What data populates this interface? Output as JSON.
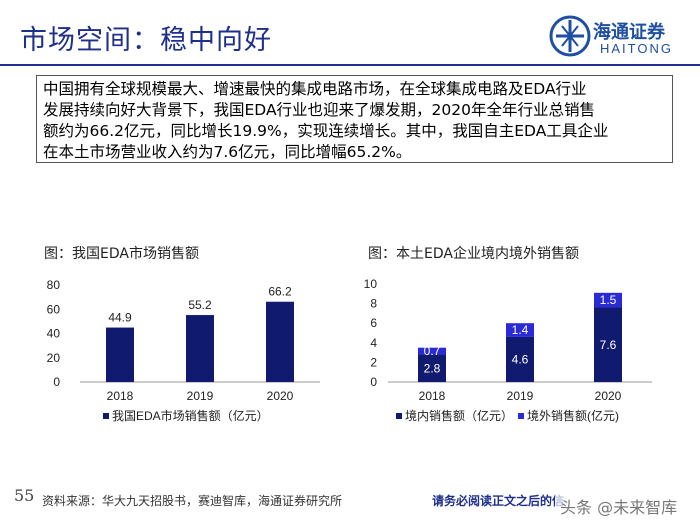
{
  "page": {
    "title": "市场空间：稳中向好",
    "logo_cn": "海通证券",
    "logo_en": "HAITONG",
    "summary_lines": [
      "中国拥有全球规模最大、增速最快的集成电路市场，在全球集成电路及EDA行业",
      "发展持续向好大背景下，我国EDA行业也迎来了爆发期，2020年全年行业总销售",
      "额约为66.2亿元，同比增长19.9%，实现连续增长。其中，我国自主EDA工具企业",
      "在本土市场营业收入约为7.6亿元，同比增幅65.2%。"
    ],
    "page_number": "55",
    "source": "资料来源：华大九天招股书，赛迪智库，海通证券研究所",
    "disclaimer": "请务必阅读正文之后的信",
    "watermark": "头条 @未来智库"
  },
  "colors": {
    "brand": "#1f2f8c",
    "bar_dark": "#101a6e",
    "bar_light": "#2b2bd6"
  },
  "chart_data": [
    {
      "type": "bar",
      "title": "图：我国EDA市场销售额",
      "categories": [
        "2018",
        "2019",
        "2020"
      ],
      "series": [
        {
          "name": "我国EDA市场销售额（亿元）",
          "values": [
            44.9,
            55.2,
            66.2
          ]
        }
      ],
      "data_labels": [
        "44.9",
        "55.2",
        "66.2"
      ],
      "ylim": [
        0,
        80
      ],
      "yticks": [
        0,
        20,
        40,
        60,
        80
      ],
      "grid": false,
      "legend": "bottom"
    },
    {
      "type": "bar",
      "stacked": true,
      "title": "图：本土EDA企业境内境外销售额",
      "categories": [
        "2018",
        "2019",
        "2020"
      ],
      "series": [
        {
          "name": "境内销售额（亿元）",
          "values": [
            2.8,
            4.6,
            7.6
          ]
        },
        {
          "name": "境外销售额(亿元)",
          "values": [
            0.7,
            1.4,
            1.5
          ]
        }
      ],
      "ylim": [
        0,
        10
      ],
      "yticks": [
        0,
        2,
        4,
        6,
        8,
        10
      ],
      "grid": false,
      "legend": "bottom"
    }
  ]
}
